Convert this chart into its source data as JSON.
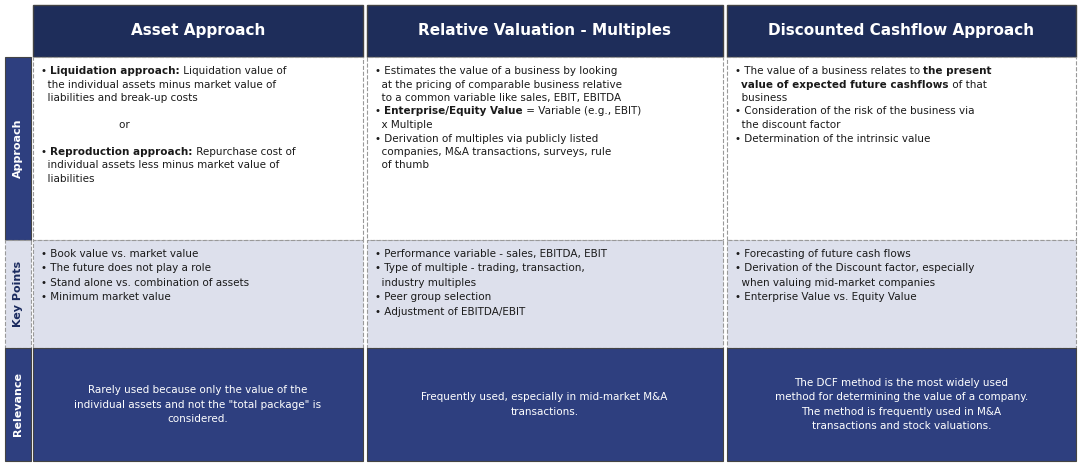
{
  "header_bg": "#1e2d5a",
  "header_text_color": "#ffffff",
  "approach_bg": "#ffffff",
  "keypoints_bg": "#dde0ec",
  "relevance_bg": "#2e3f7f",
  "relevance_text_color": "#ffffff",
  "row_label_approach_bg": "#2e3f7f",
  "row_label_keypoints_bg": "#dde0ec",
  "row_label_relevance_bg": "#2e3f7f",
  "row_label_text_color_dark": "#1a2a5e",
  "row_label_text_color_light": "#ffffff",
  "border_solid": "#444444",
  "border_dashed": "#999999",
  "col_headers": [
    "Asset Approach",
    "Relative Valuation - Multiples",
    "Discounted Cashflow Approach"
  ],
  "row_labels": [
    "Approach",
    "Key Points",
    "Relevance"
  ],
  "approach_lines_col0": [
    [
      [
        "• ",
        false
      ],
      [
        "Liquidation approach:",
        true
      ],
      [
        " Liquidation value of",
        false
      ]
    ],
    [
      [
        "  the individual assets minus market value of",
        false
      ]
    ],
    [
      [
        "  liabilities and break-up costs",
        false
      ]
    ],
    [
      [
        "",
        false
      ]
    ],
    [
      [
        "                        or",
        false
      ]
    ],
    [
      [
        "",
        false
      ]
    ],
    [
      [
        "• ",
        false
      ],
      [
        "Reproduction approach:",
        true
      ],
      [
        " Repurchase cost of",
        false
      ]
    ],
    [
      [
        "  individual assets less minus market value of",
        false
      ]
    ],
    [
      [
        "  liabilities",
        false
      ]
    ]
  ],
  "approach_lines_col1": [
    [
      [
        "• Estimates the value of a business by looking",
        false
      ]
    ],
    [
      [
        "  at the pricing of comparable business relative",
        false
      ]
    ],
    [
      [
        "  to a common variable like sales, EBIT, EBITDA",
        false
      ]
    ],
    [
      [
        "• ",
        false
      ],
      [
        "Enterprise/Equity Value",
        true
      ],
      [
        " = Variable (e.g., EBIT)",
        false
      ]
    ],
    [
      [
        "  x Multiple",
        false
      ]
    ],
    [
      [
        "• Derivation of multiples via publicly listed",
        false
      ]
    ],
    [
      [
        "  companies, M&A transactions, surveys, rule",
        false
      ]
    ],
    [
      [
        "  of thumb",
        false
      ]
    ]
  ],
  "approach_lines_col2": [
    [
      [
        "• The value of a business relates to ",
        false
      ],
      [
        "the present",
        true
      ]
    ],
    [
      [
        "  ",
        false
      ],
      [
        "value of expected future cashflows",
        true
      ],
      [
        " of that",
        false
      ]
    ],
    [
      [
        "  business",
        false
      ]
    ],
    [
      [
        "• Consideration of the risk of the business via",
        false
      ]
    ],
    [
      [
        "  the discount factor",
        false
      ]
    ],
    [
      [
        "• Determination of the intrinsic value",
        false
      ]
    ]
  ],
  "keypoints_col0": "• Book value vs. market value\n• The future does not play a role\n• Stand alone vs. combination of assets\n• Minimum market value",
  "keypoints_col1": "• Performance variable - sales, EBITDA, EBIT\n• Type of multiple - trading, transaction,\n  industry multiples\n• Peer group selection\n• Adjustment of EBITDA/EBIT",
  "keypoints_col2": "• Forecasting of future cash flows\n• Derivation of the Discount factor, especially\n  when valuing mid-market companies\n• Enterprise Value vs. Equity Value",
  "relevance_col0": "Rarely used because only the value of the\nindividual assets and not the \"total package\" is\nconsidered.",
  "relevance_col1": "Frequently used, especially in mid-market M&A\ntransactions.",
  "relevance_col2": "The DCF method is the most widely used\nmethod for determining the value of a company.\nThe method is frequently used in M&A\ntransactions and stock valuations.",
  "fig_width": 10.81,
  "fig_height": 4.66,
  "dpi": 100
}
